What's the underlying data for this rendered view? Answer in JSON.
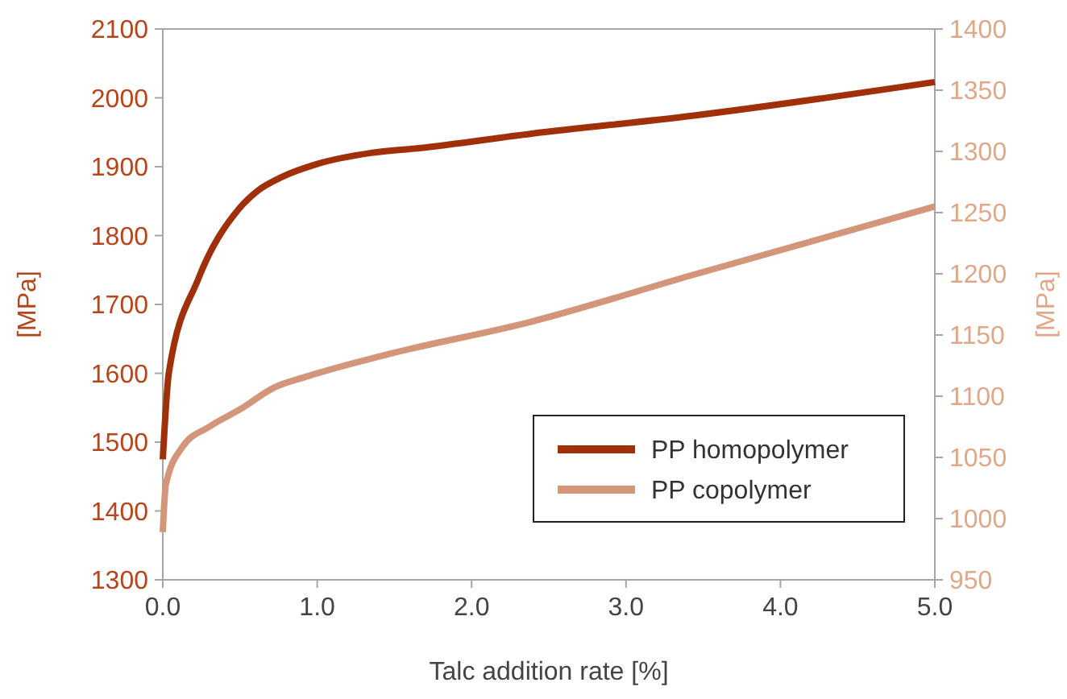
{
  "chart_data": {
    "type": "line",
    "xlabel": "Talc addition rate [%]",
    "ylabel": "[MPa]",
    "y2label": "[MPa]",
    "xlim": [
      0,
      5
    ],
    "xticks": [
      {
        "value": 0,
        "label": "0.0"
      },
      {
        "value": 1,
        "label": "1.0"
      },
      {
        "value": 2,
        "label": "2.0"
      },
      {
        "value": 3,
        "label": "3.0"
      },
      {
        "value": 4,
        "label": "4.0"
      },
      {
        "value": 5,
        "label": "5.0"
      }
    ],
    "ylim": [
      1300,
      2100
    ],
    "yticks": [
      1300,
      1400,
      1500,
      1600,
      1700,
      1800,
      1900,
      2000,
      2100
    ],
    "y2lim": [
      950,
      1400
    ],
    "y2ticks": [
      950,
      1000,
      1050,
      1100,
      1150,
      1200,
      1250,
      1300,
      1350,
      1400
    ],
    "legend": "right",
    "grid": false,
    "marker": "none",
    "line_style": "solid",
    "series": [
      {
        "name": "PP homopolymer",
        "color": "#a0300a",
        "x": [
          0,
          0.04,
          0.23,
          0.49,
          0.62,
          0.77,
          1,
          1.35,
          1.66,
          2.39,
          3.43,
          5
        ],
        "values": [
          1475,
          1602,
          1737,
          1838,
          1866,
          1885,
          1904,
          1920,
          1927,
          1948,
          1974,
          2023
        ]
      },
      {
        "name": "PP copolymer",
        "color": "#d4967a",
        "axis": "y2",
        "x": [
          0,
          0.02,
          0.13,
          0.3,
          0.51,
          0.72,
          0.93,
          1.45,
          2.39,
          3.43,
          5
        ],
        "values": [
          989,
          1028,
          1059,
          1075,
          1090,
          1107,
          1116,
          1134,
          1161,
          1199,
          1255
        ]
      }
    ]
  }
}
